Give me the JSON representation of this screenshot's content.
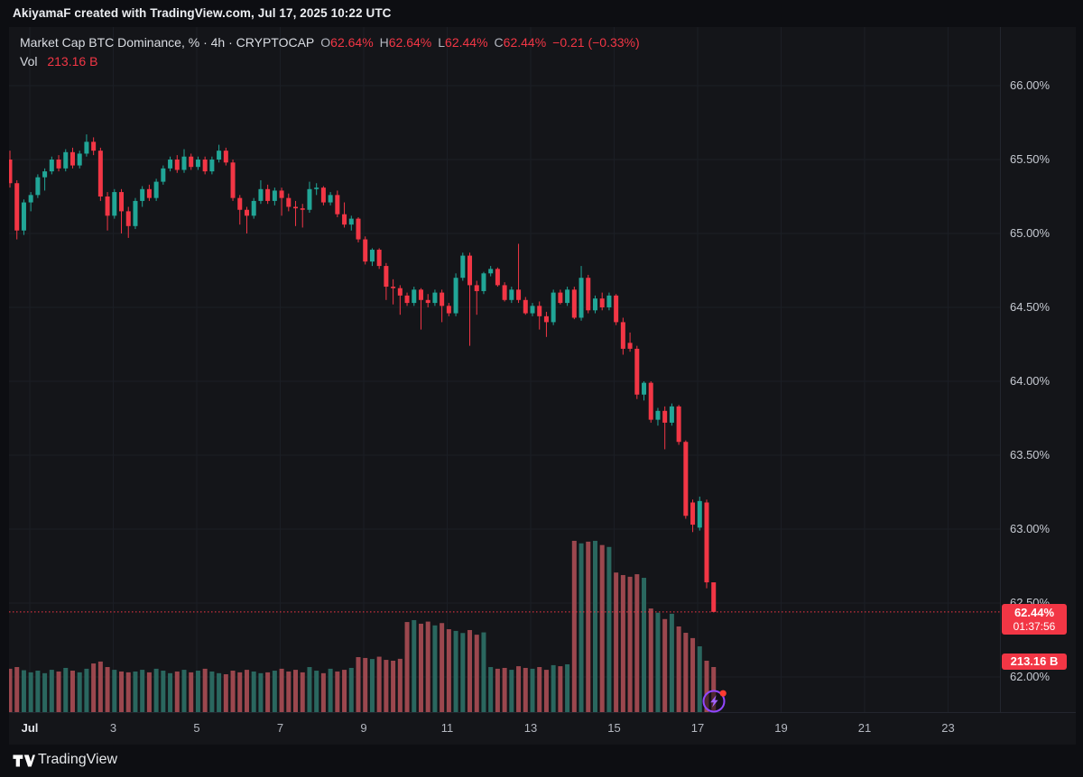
{
  "header": {
    "title": "AkiyamaF created with TradingView.com, Jul 17, 2025 10:22 UTC"
  },
  "legend": {
    "title": "Market Cap BTC Dominance, % · 4h · CRYPTOCAP",
    "ohlc": [
      {
        "label": "O",
        "value": "62.64%"
      },
      {
        "label": "H",
        "value": "62.64%"
      },
      {
        "label": "L",
        "value": "62.44%"
      },
      {
        "label": "C",
        "value": "62.44%"
      }
    ],
    "change": "−0.21 (−0.33%)",
    "vol_label": "Vol",
    "vol_value": "213.16 B"
  },
  "price_axis": {
    "labels": [
      "66.00%",
      "65.50%",
      "65.00%",
      "64.50%",
      "64.00%",
      "63.50%",
      "63.00%",
      "62.50%",
      "62.00%"
    ],
    "price_badge": {
      "price": "62.44%",
      "countdown": "01:37:56"
    },
    "vol_badge": "213.16 B"
  },
  "footer": {
    "brand": "TradingView"
  },
  "colors": {
    "up": "#21a697",
    "down": "#f23645",
    "vol_up": "#2a675f",
    "vol_down": "#9b474e",
    "grid": "#1b1e25",
    "accent_red": "#f23645",
    "flash_purple": "#9146ff",
    "dot_red": "#ff3b30"
  },
  "chart_data": {
    "type": "candlestick+volume",
    "title": "Market Cap BTC Dominance, %",
    "symbol": "CRYPTOCAP",
    "interval": "4h",
    "last_price": 62.44,
    "last_change": "-0.21 (-0.33%)",
    "last_volume_B": 213.16,
    "y_axis": {
      "unit": "%",
      "top_gridline": 66.0,
      "gridlines": [
        66.0,
        65.5,
        65.0,
        64.5,
        64.0,
        63.5,
        63.0,
        62.5,
        62.0
      ]
    },
    "x_axis": {
      "month": "Jul",
      "ticks": [
        {
          "label": "Jul",
          "day": 1,
          "major": true
        },
        {
          "label": "3",
          "day": 3,
          "major": false
        },
        {
          "label": "5",
          "day": 5,
          "major": false
        },
        {
          "label": "7",
          "day": 7,
          "major": false
        },
        {
          "label": "9",
          "day": 9,
          "major": false
        },
        {
          "label": "11",
          "day": 11,
          "major": false
        },
        {
          "label": "13",
          "day": 13,
          "major": false
        },
        {
          "label": "15",
          "day": 15,
          "major": false
        },
        {
          "label": "17",
          "day": 17,
          "major": false
        },
        {
          "label": "19",
          "day": 19,
          "major": false
        },
        {
          "label": "21",
          "day": 21,
          "major": false
        },
        {
          "label": "23",
          "day": 23,
          "major": false
        }
      ]
    },
    "candles": [
      [
        65.5,
        65.56,
        65.31,
        65.34
      ],
      [
        65.34,
        65.36,
        64.96,
        65.02
      ],
      [
        65.02,
        65.23,
        64.99,
        65.21
      ],
      [
        65.21,
        65.28,
        65.15,
        65.26
      ],
      [
        65.26,
        65.4,
        65.24,
        65.38
      ],
      [
        65.38,
        65.44,
        65.29,
        65.42
      ],
      [
        65.42,
        65.52,
        65.4,
        65.5
      ],
      [
        65.5,
        65.53,
        65.42,
        65.44
      ],
      [
        65.44,
        65.57,
        65.42,
        65.55
      ],
      [
        65.55,
        65.58,
        65.44,
        65.46
      ],
      [
        65.46,
        65.56,
        65.44,
        65.54
      ],
      [
        65.54,
        65.67,
        65.52,
        65.62
      ],
      [
        65.62,
        65.65,
        65.53,
        65.56
      ],
      [
        65.56,
        65.58,
        65.22,
        65.25
      ],
      [
        65.25,
        65.28,
        65.02,
        65.12
      ],
      [
        65.12,
        65.3,
        65.1,
        65.28
      ],
      [
        65.28,
        65.3,
        65.0,
        65.15
      ],
      [
        65.15,
        65.18,
        64.97,
        65.05
      ],
      [
        65.05,
        65.24,
        65.03,
        65.22
      ],
      [
        65.22,
        65.32,
        65.18,
        65.3
      ],
      [
        65.3,
        65.33,
        65.22,
        65.24
      ],
      [
        65.24,
        65.37,
        65.22,
        65.35
      ],
      [
        65.35,
        65.46,
        65.33,
        65.44
      ],
      [
        65.44,
        65.52,
        65.42,
        65.5
      ],
      [
        65.5,
        65.53,
        65.41,
        65.43
      ],
      [
        65.43,
        65.57,
        65.41,
        65.52
      ],
      [
        65.52,
        65.54,
        65.43,
        65.45
      ],
      [
        65.45,
        65.52,
        65.43,
        65.5
      ],
      [
        65.5,
        65.52,
        65.4,
        65.42
      ],
      [
        65.42,
        65.52,
        65.4,
        65.5
      ],
      [
        65.5,
        65.6,
        65.48,
        65.56
      ],
      [
        65.56,
        65.58,
        65.46,
        65.48
      ],
      [
        65.48,
        65.5,
        65.22,
        65.24
      ],
      [
        65.24,
        65.26,
        65.06,
        65.16
      ],
      [
        65.16,
        65.18,
        65.0,
        65.12
      ],
      [
        65.12,
        65.24,
        65.1,
        65.22
      ],
      [
        65.22,
        65.36,
        65.2,
        65.3
      ],
      [
        65.3,
        65.33,
        65.2,
        65.22
      ],
      [
        65.22,
        65.31,
        65.19,
        65.29
      ],
      [
        65.29,
        65.31,
        65.12,
        65.24
      ],
      [
        65.24,
        65.27,
        65.15,
        65.18
      ],
      [
        65.18,
        65.22,
        65.05,
        65.17
      ],
      [
        65.17,
        65.2,
        65.04,
        65.16
      ],
      [
        65.16,
        65.35,
        65.14,
        65.3
      ],
      [
        65.3,
        65.34,
        65.26,
        65.31
      ],
      [
        65.31,
        65.32,
        65.19,
        65.21
      ],
      [
        65.21,
        65.28,
        65.19,
        65.26
      ],
      [
        65.26,
        65.29,
        65.11,
        65.13
      ],
      [
        65.13,
        65.21,
        65.04,
        65.06
      ],
      [
        65.06,
        65.12,
        65.02,
        65.1
      ],
      [
        65.1,
        65.11,
        64.94,
        64.96
      ],
      [
        64.96,
        64.98,
        64.79,
        64.81
      ],
      [
        64.81,
        64.9,
        64.78,
        64.89
      ],
      [
        64.89,
        64.9,
        64.76,
        64.78
      ],
      [
        64.78,
        64.8,
        64.55,
        64.64
      ],
      [
        64.64,
        64.69,
        64.52,
        64.63
      ],
      [
        64.63,
        64.65,
        64.45,
        64.58
      ],
      [
        64.58,
        64.6,
        64.51,
        64.53
      ],
      [
        64.53,
        64.64,
        64.51,
        64.62
      ],
      [
        64.62,
        64.63,
        64.35,
        64.55
      ],
      [
        64.55,
        64.59,
        64.5,
        64.53
      ],
      [
        64.53,
        64.62,
        64.51,
        64.6
      ],
      [
        64.6,
        64.62,
        64.4,
        64.51
      ],
      [
        64.51,
        64.53,
        64.44,
        64.46
      ],
      [
        64.46,
        64.73,
        64.44,
        64.7
      ],
      [
        64.7,
        64.87,
        64.68,
        64.85
      ],
      [
        64.85,
        64.87,
        64.24,
        64.65
      ],
      [
        64.65,
        64.68,
        64.45,
        64.61
      ],
      [
        64.61,
        64.74,
        64.59,
        64.73
      ],
      [
        64.73,
        64.78,
        64.71,
        64.76
      ],
      [
        64.76,
        64.77,
        64.64,
        64.65
      ],
      [
        64.65,
        64.67,
        64.54,
        64.55
      ],
      [
        64.55,
        64.64,
        64.53,
        64.62
      ],
      [
        64.62,
        64.93,
        64.53,
        64.55
      ],
      [
        64.55,
        64.57,
        64.45,
        64.46
      ],
      [
        64.46,
        64.53,
        64.44,
        64.51
      ],
      [
        64.51,
        64.54,
        64.35,
        64.44
      ],
      [
        64.44,
        64.47,
        64.3,
        64.4
      ],
      [
        64.4,
        64.62,
        64.38,
        64.6
      ],
      [
        64.6,
        64.62,
        64.52,
        64.53
      ],
      [
        64.53,
        64.64,
        64.51,
        64.62
      ],
      [
        64.62,
        64.64,
        64.42,
        64.43
      ],
      [
        64.43,
        64.78,
        64.41,
        64.7
      ],
      [
        64.7,
        64.72,
        64.46,
        64.48
      ],
      [
        64.48,
        64.58,
        64.46,
        64.56
      ],
      [
        64.56,
        64.6,
        64.48,
        64.5
      ],
      [
        64.5,
        64.6,
        64.48,
        64.58
      ],
      [
        64.58,
        64.59,
        64.38,
        64.4
      ],
      [
        64.4,
        64.43,
        64.18,
        64.22
      ],
      [
        64.26,
        64.33,
        64.2,
        64.22
      ],
      [
        64.22,
        64.24,
        63.88,
        63.91
      ],
      [
        63.91,
        64.0,
        63.87,
        63.99
      ],
      [
        63.99,
        64.0,
        63.72,
        63.74
      ],
      [
        63.74,
        63.82,
        63.7,
        63.8
      ],
      [
        63.8,
        63.83,
        63.54,
        63.72
      ],
      [
        63.72,
        63.85,
        63.7,
        63.83
      ],
      [
        63.83,
        63.84,
        63.57,
        63.59
      ],
      [
        63.59,
        63.6,
        63.07,
        63.09
      ],
      [
        63.18,
        63.2,
        62.98,
        63.03
      ],
      [
        63.01,
        63.22,
        62.99,
        63.19
      ],
      [
        63.18,
        63.2,
        62.6,
        62.64
      ],
      [
        62.64,
        62.64,
        62.44,
        62.44
      ]
    ],
    "volumes_B": [
      205,
      213,
      198,
      188,
      196,
      184,
      200,
      192,
      209,
      196,
      188,
      205,
      230,
      239,
      213,
      200,
      192,
      188,
      192,
      200,
      188,
      205,
      196,
      184,
      192,
      200,
      188,
      196,
      205,
      192,
      184,
      179,
      196,
      188,
      200,
      192,
      184,
      188,
      196,
      205,
      192,
      200,
      188,
      213,
      196,
      184,
      205,
      192,
      200,
      209,
      260,
      256,
      251,
      262,
      247,
      243,
      252,
      426,
      435,
      418,
      428,
      410,
      421,
      392,
      384,
      374,
      388,
      366,
      377,
      213,
      205,
      209,
      200,
      217,
      209,
      205,
      213,
      200,
      222,
      217,
      226,
      810,
      798,
      806,
      810,
      790,
      781,
      660,
      648,
      640,
      652,
      635,
      490,
      470,
      440,
      465,
      405,
      375,
      350,
      311,
      243,
      213.16
    ]
  }
}
